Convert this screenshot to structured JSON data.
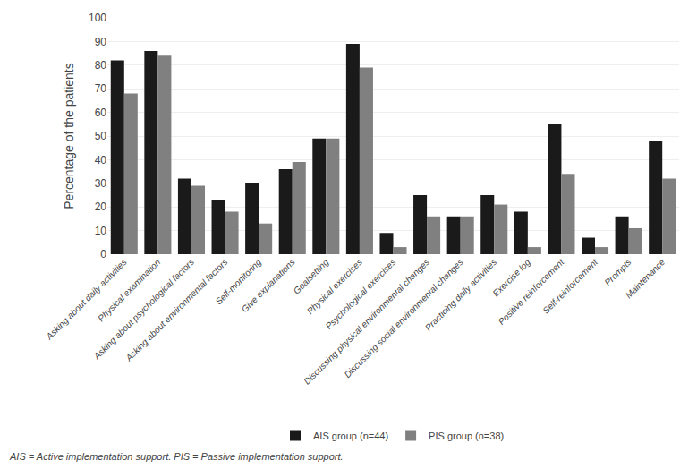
{
  "chart_data": {
    "type": "bar",
    "categories": [
      "Asking about daily activities",
      "Physical examination",
      "Asking about psychological factors",
      "Asking about environmental factors",
      "Self-monitoring",
      "Give explanations",
      "Goalsetting",
      "Physical exercises",
      "Psychological exercises",
      "Discussing physical environmental changes",
      "Discussing social environmental changes",
      "Practicing daily activities",
      "Exercise log",
      "Positive reinforcement",
      "Self-reinforcement",
      "Prompts",
      "Maintenance"
    ],
    "series": [
      {
        "name": "AIS group (n=44)",
        "color": "#1a1a1a",
        "values": [
          82,
          86,
          32,
          23,
          30,
          36,
          49,
          89,
          9,
          25,
          16,
          25,
          18,
          55,
          7,
          16,
          48
        ]
      },
      {
        "name": "PIS group (n=38)",
        "color": "#808080",
        "values": [
          68,
          84,
          29,
          18,
          13,
          39,
          49,
          79,
          3,
          16,
          16,
          21,
          3,
          34,
          3,
          11,
          32
        ]
      }
    ],
    "ylabel": "Percentage of the patients",
    "ylim": [
      0,
      100
    ],
    "yticks": [
      0,
      10,
      20,
      30,
      40,
      50,
      60,
      70,
      80,
      90,
      100
    ],
    "grid": true,
    "legend": "bottom",
    "annotations": [
      "AIS = Active implementation support. PIS = Passive implementation support."
    ]
  }
}
